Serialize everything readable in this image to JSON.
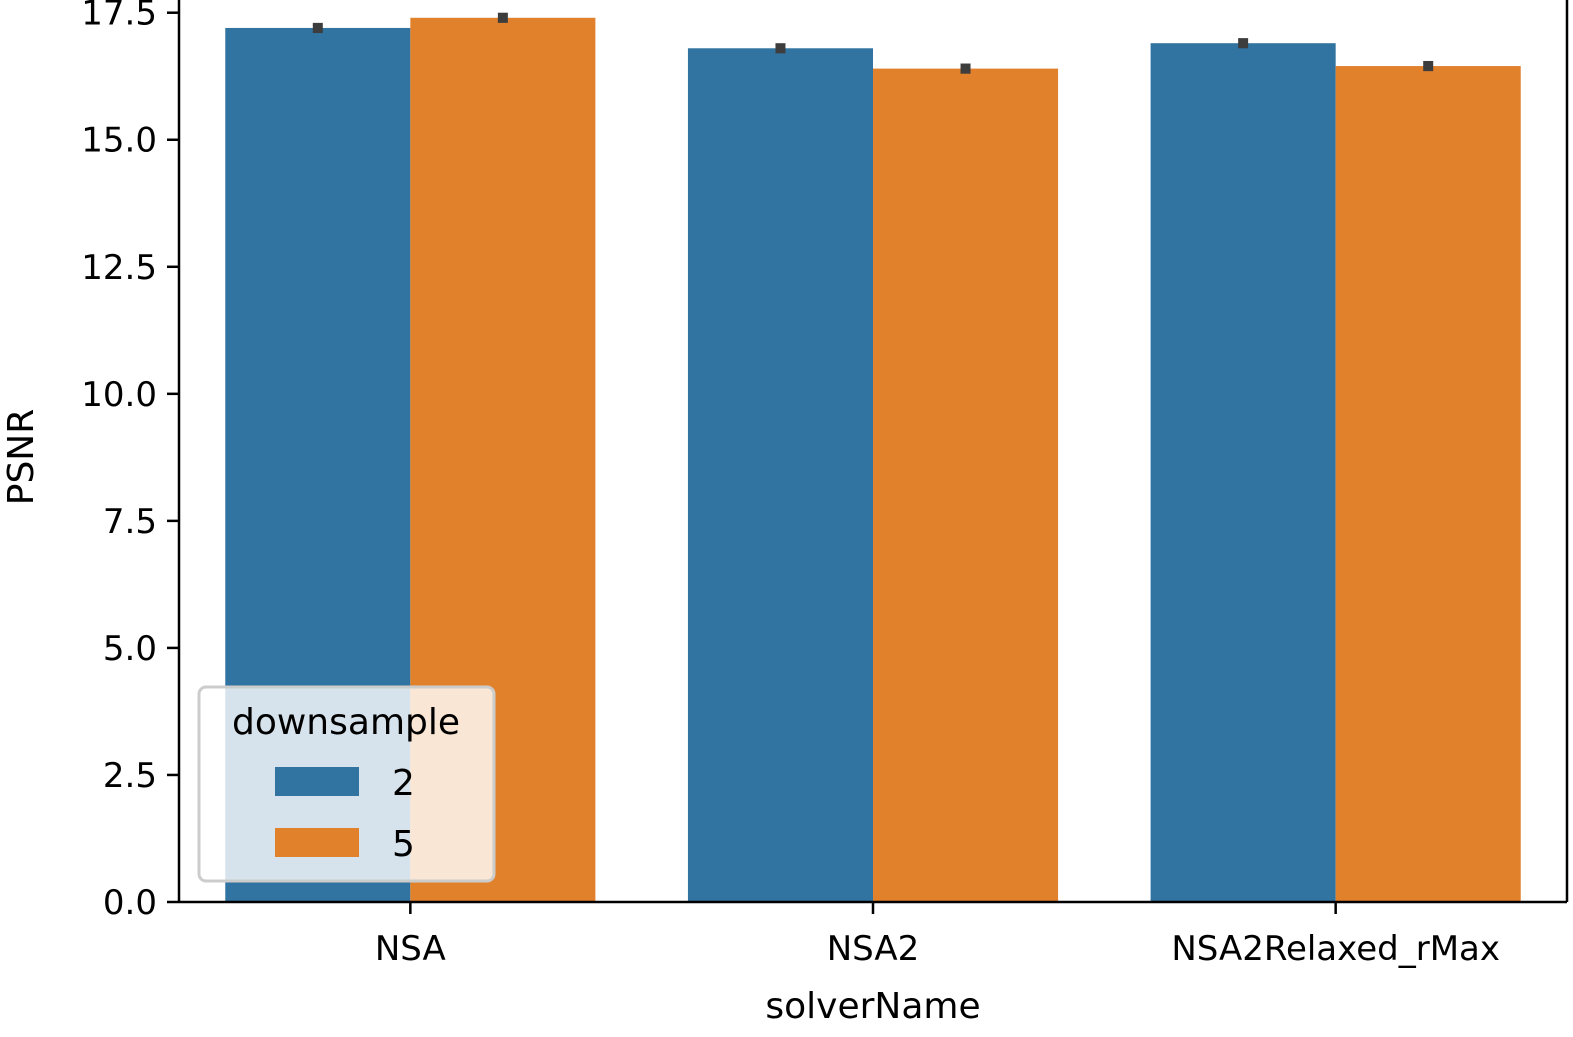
{
  "chart_data": {
    "type": "bar",
    "xlabel": "solverName",
    "ylabel": "PSNR",
    "categories": [
      "NSA",
      "NSA2",
      "NSA2Relaxed_rMax"
    ],
    "series": [
      {
        "name": "2",
        "color": "#3274a1",
        "values": [
          17.2,
          16.8,
          16.9
        ],
        "ci": [
          [
            17.1,
            17.3
          ],
          [
            16.7,
            16.9
          ],
          [
            16.8,
            17.0
          ]
        ]
      },
      {
        "name": "5",
        "color": "#e1812c",
        "values": [
          17.4,
          16.4,
          16.45
        ],
        "ci": [
          [
            17.3,
            17.5
          ],
          [
            16.3,
            16.5
          ],
          [
            16.35,
            16.55
          ]
        ]
      }
    ],
    "ylim": [
      0,
      17.75
    ],
    "yticks": [
      "0.0",
      "2.5",
      "5.0",
      "7.5",
      "10.0",
      "12.5",
      "15.0",
      "17.5"
    ],
    "legend": {
      "title": "downsample",
      "placement": "lower-left"
    },
    "grid": false
  }
}
